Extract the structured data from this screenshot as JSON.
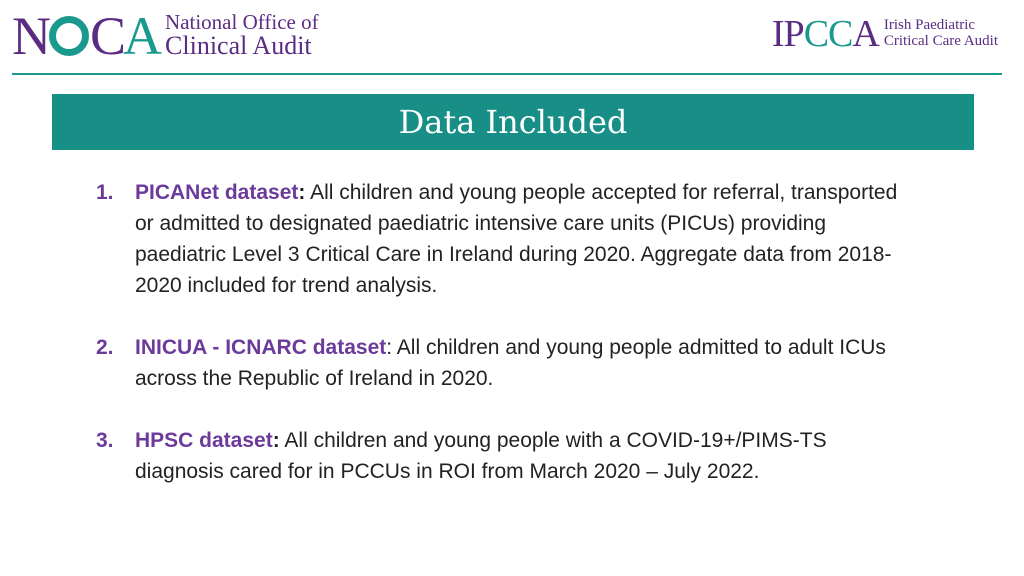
{
  "header": {
    "noca_logo": {
      "mark": "NOCA",
      "line1": "National Office of",
      "line2": "Clinical Audit"
    },
    "ipcca_logo": {
      "mark": "IPCCA",
      "line1": "Irish Paediatric",
      "line2": "Critical Care Audit"
    }
  },
  "title": "Data Included",
  "items": [
    {
      "number": "1.",
      "label": "PICANet dataset",
      "separator": ":",
      "text": " All children and young people accepted for referral, transported or admitted to designated paediatric intensive care units (PICUs) providing paediatric Level 3 Critical Care in Ireland during 2020. Aggregate data from 2018-2020 included for trend analysis."
    },
    {
      "number": "2.",
      "label": "INICUA - ICNARC dataset",
      "separator": ":",
      "text": " All children and young people admitted to adult ICUs across the Republic of Ireland in 2020."
    },
    {
      "number": "3.",
      "label": "HPSC dataset",
      "separator": ":",
      "text": " All children and young people with a COVID-19+/PIMS-TS diagnosis cared for in PCCUs in ROI from March 2020 – July 2022."
    }
  ],
  "colors": {
    "brand_purple": "#5b2c83",
    "brand_teal": "#1a9a8f",
    "title_bar": "#178f86",
    "label_purple": "#6b3a9b"
  }
}
